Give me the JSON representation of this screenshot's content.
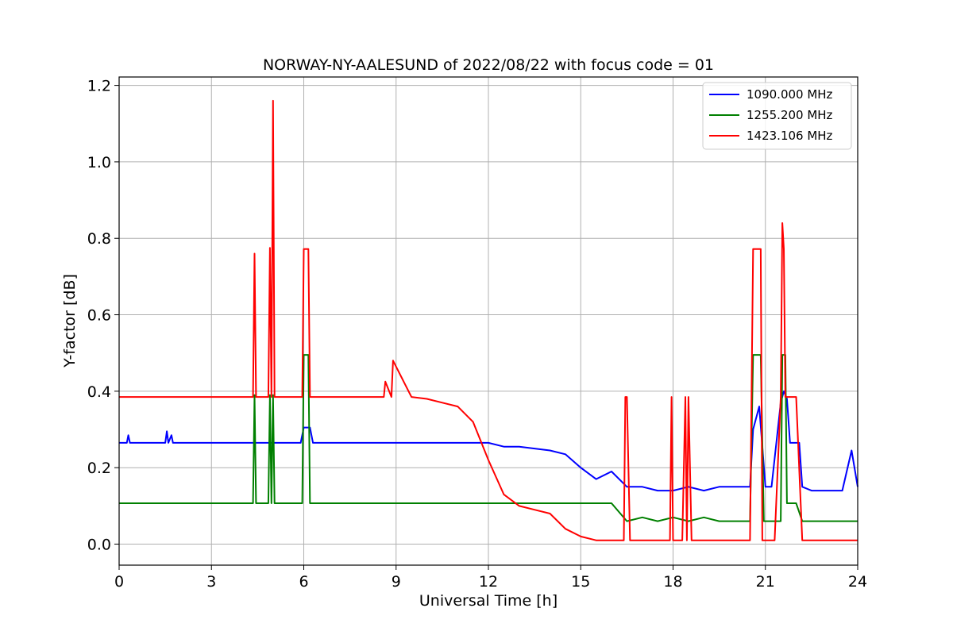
{
  "chart_data": {
    "type": "line",
    "title": "NORWAY-NY-AALESUND of 2022/08/22 with focus code = 01",
    "xlabel": "Universal Time [h]",
    "ylabel": "Y-factor [dB]",
    "xlim": [
      0,
      24
    ],
    "ylim": [
      -0.055,
      1.222
    ],
    "x_ticks": [
      0,
      3,
      6,
      9,
      12,
      15,
      18,
      21,
      24
    ],
    "x_tick_labels": [
      "0",
      "3",
      "6",
      "9",
      "12",
      "15",
      "18",
      "21",
      "24"
    ],
    "y_ticks": [
      0.0,
      0.2,
      0.4,
      0.6,
      0.8,
      1.0,
      1.2
    ],
    "y_tick_labels": [
      "0.0",
      "0.2",
      "0.4",
      "0.6",
      "0.8",
      "1.0",
      "1.2"
    ],
    "grid": true,
    "legend_position": "top-right",
    "series": [
      {
        "name": "1090.000 MHz",
        "color": "#0000ff",
        "x": [
          0,
          0.25,
          0.3,
          0.35,
          1.5,
          1.55,
          1.6,
          1.7,
          1.75,
          1.8,
          3.0,
          5.9,
          6.0,
          6.2,
          6.3,
          9.0,
          10.0,
          11.0,
          11.5,
          12.0,
          12.5,
          13.0,
          13.5,
          14.0,
          14.5,
          15.0,
          15.5,
          16.0,
          16.5,
          17.0,
          17.5,
          18.0,
          18.5,
          19.0,
          19.5,
          20.0,
          20.5,
          20.6,
          20.8,
          21.0,
          21.2,
          21.5,
          21.6,
          21.7,
          21.8,
          22.0,
          22.1,
          22.2,
          22.5,
          23.0,
          23.5,
          23.8,
          24.0
        ],
        "y": [
          0.265,
          0.265,
          0.285,
          0.265,
          0.265,
          0.295,
          0.265,
          0.285,
          0.265,
          0.265,
          0.265,
          0.265,
          0.305,
          0.305,
          0.265,
          0.265,
          0.265,
          0.265,
          0.265,
          0.265,
          0.255,
          0.255,
          0.25,
          0.245,
          0.235,
          0.2,
          0.17,
          0.19,
          0.15,
          0.15,
          0.14,
          0.14,
          0.15,
          0.14,
          0.15,
          0.15,
          0.15,
          0.3,
          0.36,
          0.15,
          0.15,
          0.37,
          0.4,
          0.38,
          0.265,
          0.265,
          0.265,
          0.15,
          0.14,
          0.14,
          0.14,
          0.245,
          0.15
        ]
      },
      {
        "name": "1255.200 MHz",
        "color": "#008000",
        "x": [
          0,
          1.0,
          4.35,
          4.4,
          4.45,
          4.85,
          4.9,
          4.95,
          5.0,
          5.05,
          5.95,
          6.0,
          6.15,
          6.2,
          9.0,
          11.5,
          12.0,
          13.0,
          14.0,
          14.5,
          15.0,
          15.5,
          16.0,
          16.5,
          17.0,
          17.5,
          18.0,
          18.5,
          19.0,
          19.5,
          20.0,
          20.5,
          20.6,
          20.7,
          20.85,
          20.95,
          21.0,
          21.5,
          21.55,
          21.65,
          21.7,
          22.0,
          22.2,
          22.5,
          23.0,
          23.5,
          24.0
        ],
        "y": [
          0.107,
          0.107,
          0.107,
          0.39,
          0.107,
          0.107,
          0.39,
          0.107,
          0.39,
          0.107,
          0.107,
          0.495,
          0.495,
          0.107,
          0.107,
          0.107,
          0.107,
          0.107,
          0.107,
          0.107,
          0.107,
          0.107,
          0.107,
          0.06,
          0.07,
          0.06,
          0.07,
          0.06,
          0.07,
          0.06,
          0.06,
          0.06,
          0.495,
          0.495,
          0.495,
          0.06,
          0.06,
          0.06,
          0.495,
          0.495,
          0.107,
          0.107,
          0.06,
          0.06,
          0.06,
          0.06,
          0.06
        ]
      },
      {
        "name": "1423.106 MHz",
        "color": "#ff0000",
        "x": [
          0,
          4.35,
          4.4,
          4.45,
          4.85,
          4.9,
          4.95,
          5.0,
          5.05,
          5.95,
          6.0,
          6.15,
          6.2,
          8.6,
          8.65,
          8.85,
          8.9,
          9.5,
          10.0,
          10.5,
          11.0,
          11.5,
          12.0,
          12.5,
          13.0,
          13.5,
          14.0,
          14.5,
          15.0,
          15.5,
          16.0,
          16.4,
          16.45,
          16.5,
          16.6,
          17.0,
          17.5,
          17.9,
          17.95,
          18.0,
          18.3,
          18.4,
          18.45,
          18.5,
          18.6,
          19.0,
          19.5,
          20.0,
          20.5,
          20.6,
          20.7,
          20.85,
          20.9,
          21.0,
          21.3,
          21.5,
          21.55,
          21.6,
          21.65,
          21.7,
          22.0,
          22.2,
          22.5,
          23.0,
          23.5,
          24.0
        ],
        "y": [
          0.385,
          0.385,
          0.76,
          0.385,
          0.385,
          0.775,
          0.385,
          1.16,
          0.385,
          0.385,
          0.772,
          0.772,
          0.385,
          0.385,
          0.425,
          0.385,
          0.48,
          0.385,
          0.38,
          0.37,
          0.36,
          0.32,
          0.22,
          0.13,
          0.1,
          0.09,
          0.08,
          0.04,
          0.02,
          0.01,
          0.01,
          0.01,
          0.385,
          0.385,
          0.01,
          0.01,
          0.01,
          0.01,
          0.385,
          0.01,
          0.01,
          0.385,
          0.01,
          0.385,
          0.01,
          0.01,
          0.01,
          0.01,
          0.01,
          0.772,
          0.772,
          0.772,
          0.01,
          0.01,
          0.01,
          0.385,
          0.84,
          0.772,
          0.385,
          0.385,
          0.385,
          0.01,
          0.01,
          0.01,
          0.01,
          0.01
        ]
      }
    ]
  }
}
